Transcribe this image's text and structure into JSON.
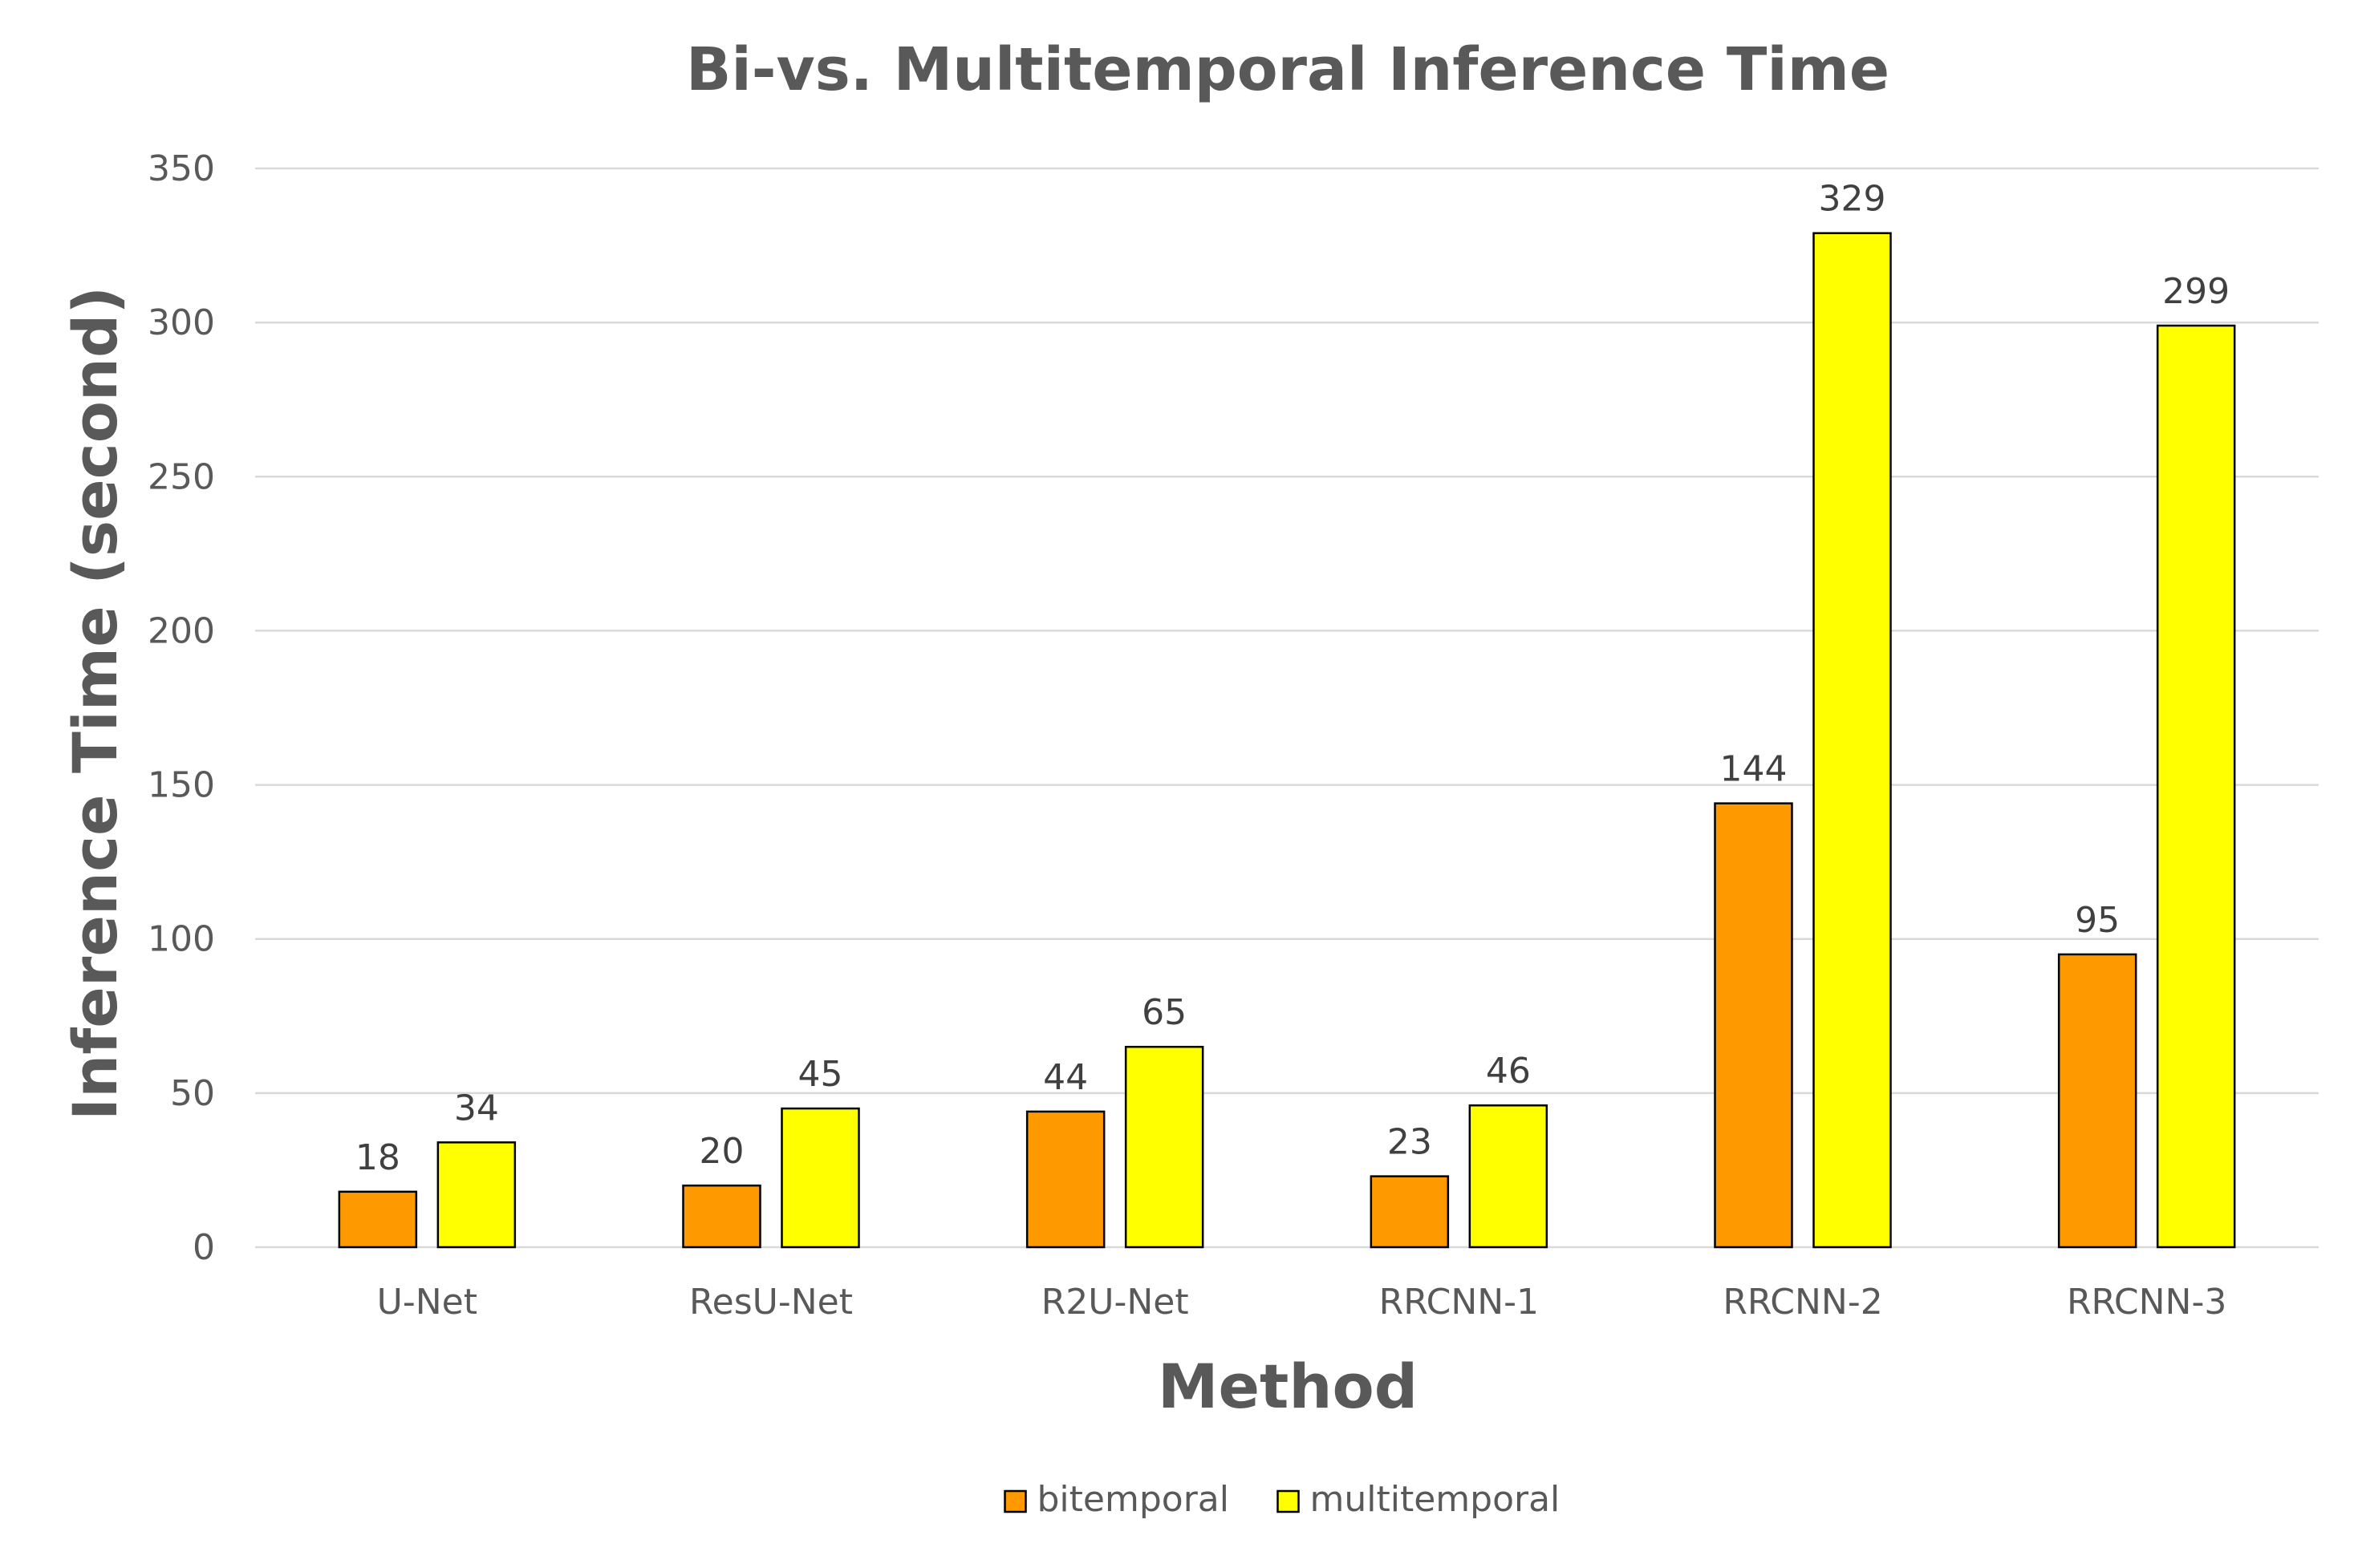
{
  "chart_data": {
    "type": "bar",
    "title": "Bi-vs. Multitemporal Inference Time",
    "xlabel": "Method",
    "ylabel": "Inference Time (second)",
    "categories": [
      "U-Net",
      "ResU-Net",
      "R2U-Net",
      "RRCNN-1",
      "RRCNN-2",
      "RRCNN-3"
    ],
    "series": [
      {
        "name": "bitemporal",
        "color": "#ff9900",
        "values": [
          18,
          20,
          44,
          23,
          144,
          95
        ]
      },
      {
        "name": "multitemporal",
        "color": "#ffff00",
        "values": [
          34,
          45,
          65,
          46,
          329,
          299
        ]
      }
    ],
    "ylim": [
      0,
      350
    ],
    "yticks": [
      0,
      50,
      100,
      150,
      200,
      250,
      300,
      350
    ],
    "grid": true,
    "legend_position": "bottom",
    "data_labels": true
  }
}
